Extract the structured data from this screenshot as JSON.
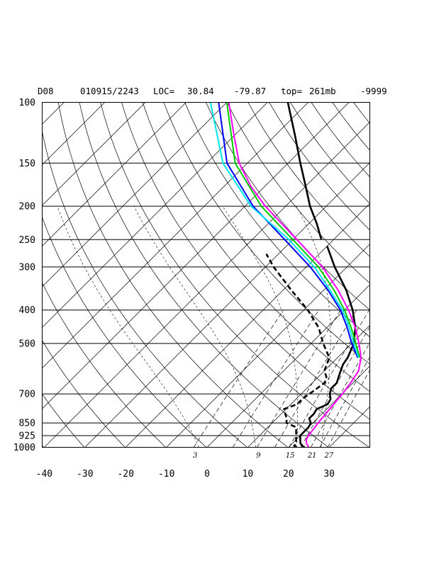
{
  "header": {
    "station": "D08",
    "datetime": "010915/2243",
    "loc_label": "LOC=",
    "lat": "30.84",
    "lon": "-79.87",
    "top_label": "top=",
    "top_value": "261mb",
    "missing_value": "-9999"
  },
  "chart_data": {
    "type": "line",
    "diagram": "skew-T log-P",
    "title": "D08  010915/2243 LOC= 30.84  -79.87  top= 261mb  -9999",
    "xlabel": "",
    "ylabel": "",
    "x_unit": "temperature (C)",
    "y_unit": "pressure (mb)",
    "y_scale": "log",
    "xlim": [
      -40,
      40
    ],
    "ylim": [
      1000,
      100
    ],
    "x_ticks": [
      "-40",
      "-30",
      "-20",
      "-10",
      "0",
      "10",
      "20",
      "30"
    ],
    "y_ticks": [
      "100",
      "150",
      "200",
      "250",
      "300",
      "400",
      "500",
      "700",
      "850",
      "925",
      "1000"
    ],
    "mixing_ratio_labels": [
      "3",
      "9",
      "15",
      "21",
      "27"
    ],
    "grid": true,
    "legend": "none",
    "series": [
      {
        "kind": "temperature",
        "color": "#000000",
        "style": "solid-thick",
        "points": [
          [
            1000,
            24.0
          ],
          [
            990,
            23.0
          ],
          [
            975,
            22.0
          ],
          [
            950,
            21.0
          ],
          [
            925,
            20.0
          ],
          [
            900,
            20.0
          ],
          [
            875,
            20.0
          ],
          [
            850,
            19.5
          ],
          [
            825,
            18.0
          ],
          [
            800,
            18.0
          ],
          [
            775,
            17.5
          ],
          [
            750,
            19.0
          ],
          [
            725,
            18.5
          ],
          [
            700,
            17.0
          ],
          [
            675,
            16.0
          ],
          [
            650,
            16.0
          ],
          [
            625,
            15.0
          ],
          [
            600,
            14.0
          ],
          [
            575,
            13.0
          ],
          [
            550,
            12.5
          ],
          [
            500,
            10.5
          ],
          [
            450,
            7.0
          ],
          [
            400,
            2.0
          ],
          [
            350,
            -4.5
          ],
          [
            300,
            -13.0
          ],
          [
            261,
            -20.0
          ]
        ]
      },
      {
        "kind": "dewpoint",
        "color": "#000000",
        "style": "dashed-thick",
        "points": [
          [
            1000,
            22.0
          ],
          [
            990,
            21.0
          ],
          [
            975,
            21.0
          ],
          [
            950,
            20.0
          ],
          [
            925,
            19.0
          ],
          [
            900,
            18.0
          ],
          [
            875,
            17.0
          ],
          [
            850,
            13.5
          ],
          [
            825,
            12.5
          ],
          [
            800,
            11.0
          ],
          [
            775,
            9.5
          ],
          [
            750,
            11.5
          ],
          [
            725,
            11.5
          ],
          [
            700,
            12.0
          ],
          [
            675,
            12.5
          ],
          [
            650,
            13.0
          ],
          [
            625,
            12.0
          ],
          [
            600,
            10.0
          ],
          [
            575,
            9.0
          ],
          [
            550,
            8.0
          ],
          [
            500,
            3.0
          ],
          [
            450,
            -2.0
          ],
          [
            400,
            -9.0
          ],
          [
            350,
            -18.0
          ],
          [
            300,
            -28.0
          ],
          [
            275,
            -33.0
          ]
        ]
      },
      {
        "kind": "temperature-parcel",
        "color": "#000000",
        "style": "solid-thick",
        "points": [
          [
            250,
            -23.0
          ],
          [
            225,
            -28.0
          ],
          [
            200,
            -34.0
          ],
          [
            175,
            -40.0
          ],
          [
            150,
            -47.0
          ],
          [
            125,
            -55.0
          ],
          [
            100,
            -65.0
          ]
        ]
      },
      {
        "kind": "virtual-temperature",
        "color": "#ff00ff",
        "style": "solid",
        "points": [
          [
            1000,
            25.0
          ],
          [
            975,
            23.5
          ],
          [
            950,
            22.5
          ],
          [
            925,
            22.0
          ],
          [
            900,
            21.8
          ],
          [
            850,
            21.3
          ],
          [
            800,
            20.9
          ],
          [
            750,
            20.5
          ],
          [
            700,
            20.1
          ],
          [
            650,
            19.4
          ],
          [
            600,
            18.4
          ],
          [
            550,
            15.8
          ],
          [
            500,
            11.8
          ],
          [
            450,
            7.0
          ],
          [
            400,
            1.0
          ],
          [
            350,
            -6.5
          ],
          [
            300,
            -16.0
          ],
          [
            250,
            -29.0
          ],
          [
            200,
            -45.0
          ],
          [
            175,
            -53.5
          ],
          [
            150,
            -62.0
          ],
          [
            125,
            -70.0
          ],
          [
            100,
            -79.5
          ]
        ]
      },
      {
        "kind": "profile-green",
        "color": "#00cc00",
        "style": "solid",
        "points": [
          [
            550,
            15.5
          ],
          [
            500,
            11.0
          ],
          [
            450,
            6.0
          ],
          [
            400,
            0.0
          ],
          [
            350,
            -7.5
          ],
          [
            300,
            -17.0
          ],
          [
            250,
            -30.0
          ],
          [
            200,
            -46.0
          ],
          [
            150,
            -63.0
          ],
          [
            100,
            -80.0
          ]
        ]
      },
      {
        "kind": "profile-blue",
        "color": "#0000ff",
        "style": "solid",
        "points": [
          [
            550,
            15.0
          ],
          [
            500,
            10.0
          ],
          [
            450,
            5.0
          ],
          [
            400,
            -1.0
          ],
          [
            350,
            -9.0
          ],
          [
            300,
            -19.0
          ],
          [
            250,
            -32.0
          ],
          [
            200,
            -48.0
          ],
          [
            150,
            -65.0
          ],
          [
            100,
            -82.0
          ]
        ]
      },
      {
        "kind": "profile-cyan",
        "color": "#00e5ee",
        "style": "solid",
        "points": [
          [
            550,
            15.2
          ],
          [
            500,
            10.5
          ],
          [
            450,
            5.5
          ],
          [
            400,
            -0.5
          ],
          [
            350,
            -8.5
          ],
          [
            300,
            -18.0
          ],
          [
            250,
            -31.0
          ],
          [
            200,
            -48.5
          ],
          [
            150,
            -66.0
          ],
          [
            100,
            -84.0
          ]
        ]
      }
    ]
  }
}
